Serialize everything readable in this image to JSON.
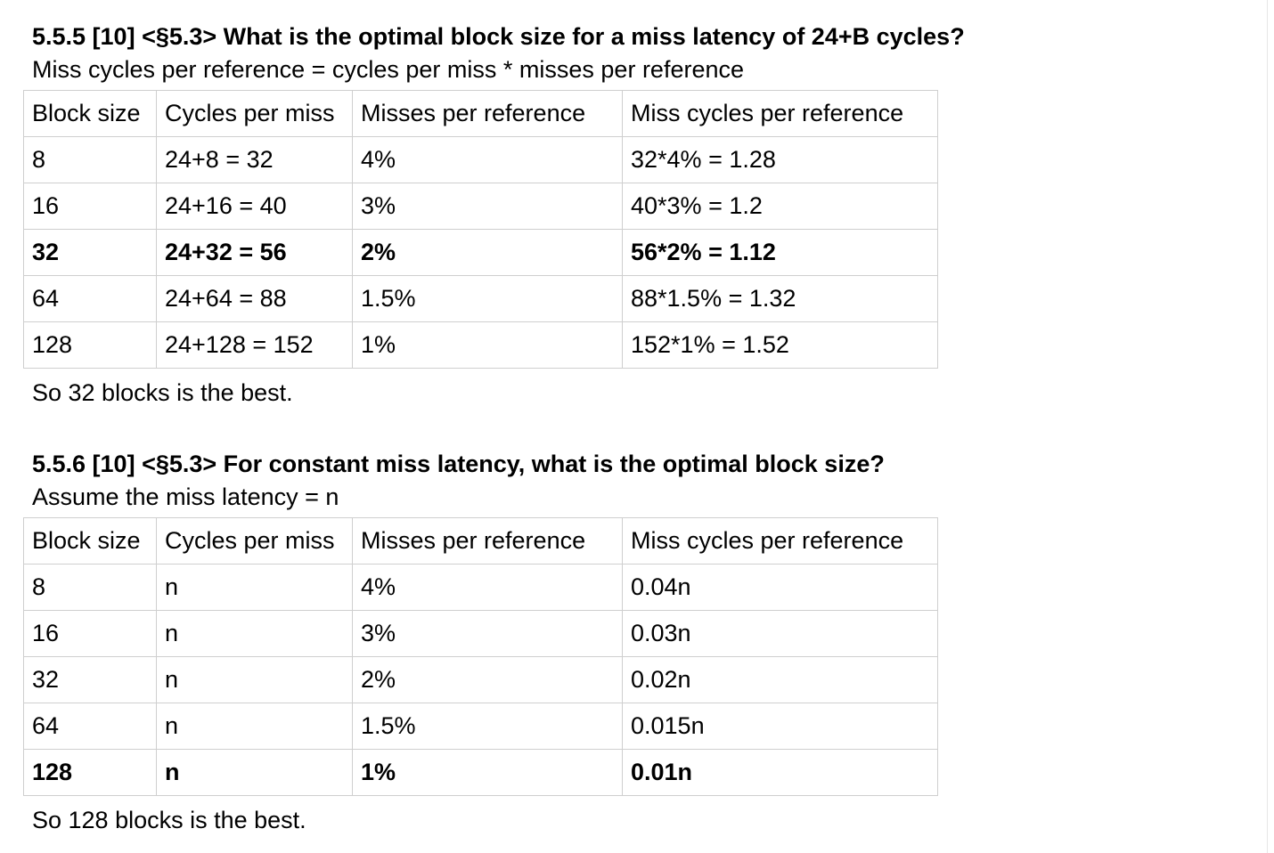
{
  "sections": [
    {
      "heading": "5.5.5 [10] <§5.3> What is the optimal block size for a miss latency of 24+B cycles?",
      "subtext": "Miss cycles per reference = cycles per miss * misses per reference",
      "headers": [
        "Block size",
        "Cycles per miss",
        "Misses per reference",
        "Miss cycles per reference"
      ],
      "rows": [
        [
          "8",
          "24+8 = 32",
          "4%",
          "32*4% = 1.28"
        ],
        [
          "16",
          "24+16 = 40",
          "3%",
          "40*3% = 1.2"
        ],
        [
          "32",
          "24+32 = 56",
          "2%",
          "56*2% = 1.12"
        ],
        [
          "64",
          "24+64 = 88",
          "1.5%",
          "88*1.5% = 1.32"
        ],
        [
          "128",
          "24+128 = 152",
          "1%",
          "152*1% = 1.52"
        ]
      ],
      "best_row": 2,
      "conclusion": "So 32 blocks is the best."
    },
    {
      "heading": "5.5.6 [10] <§5.3> For constant miss latency, what is the optimal block size?",
      "subtext": "Assume the miss latency = n",
      "headers": [
        "Block size",
        "Cycles per miss",
        "Misses per reference",
        "Miss cycles per reference"
      ],
      "rows": [
        [
          "8",
          "n",
          "4%",
          "0.04n"
        ],
        [
          "16",
          "n",
          "3%",
          "0.03n"
        ],
        [
          "32",
          "n",
          "2%",
          "0.02n"
        ],
        [
          "64",
          "n",
          "1.5%",
          "0.015n"
        ],
        [
          "128",
          "n",
          "1%",
          "0.01n"
        ]
      ],
      "best_row": 4,
      "conclusion": "So 128 blocks is the best."
    }
  ]
}
